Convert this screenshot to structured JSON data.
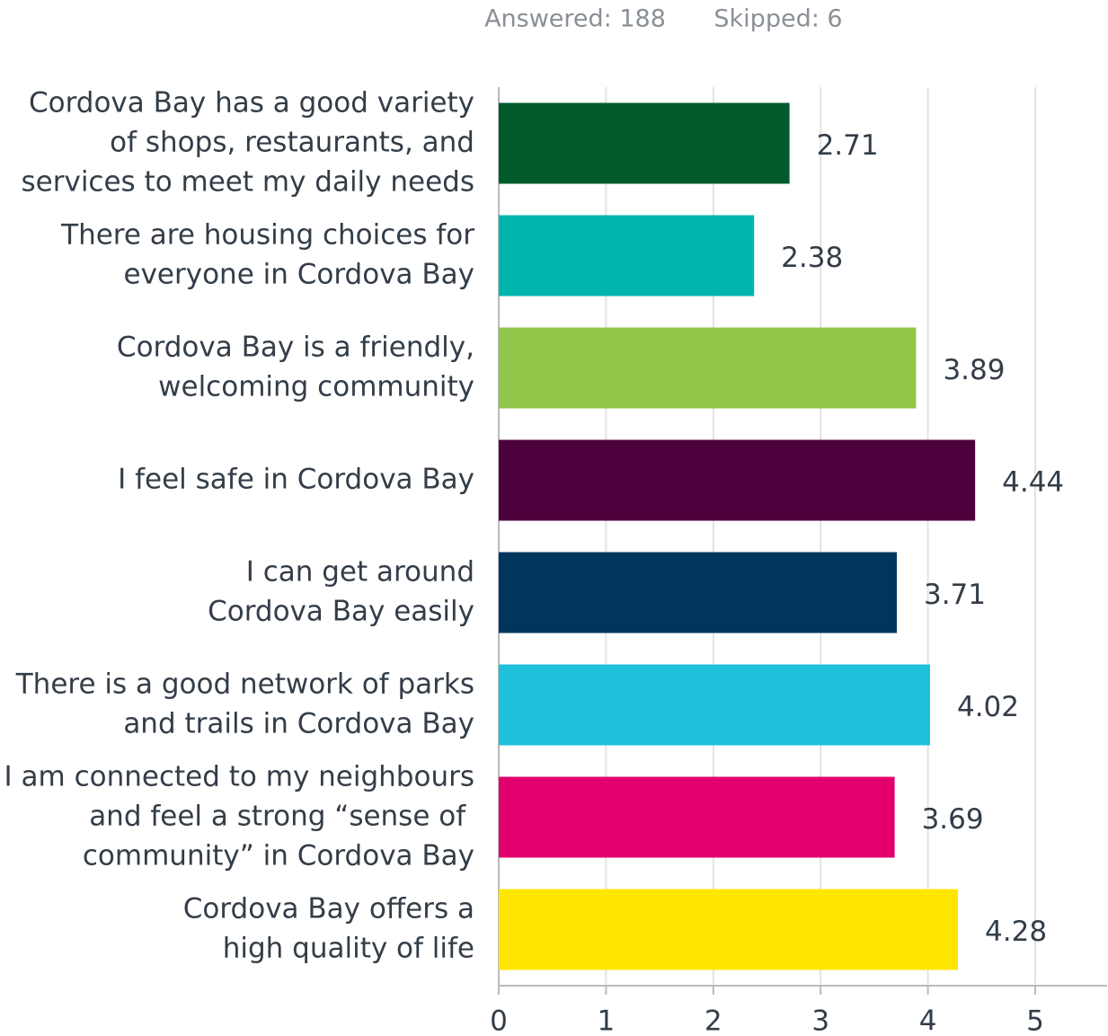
{
  "chart_data": {
    "type": "bar",
    "orientation": "horizontal",
    "annotations": [
      "Answered: 188",
      "Skipped: 6"
    ],
    "categories": [
      "Cordova Bay has a good variety\nof shops, restaurants, and\nservices to meet my daily needs",
      "There are housing choices for\neveryone in Cordova Bay",
      "Cordova Bay is a friendly,\nwelcoming community",
      "I feel safe in Cordova Bay",
      "I can get around\nCordova Bay easily",
      "There is a good network of parks\nand trails in Cordova Bay",
      "I am connected to my neighbours\nand feel a strong “sense of \ncommunity” in Cordova Bay",
      "Cordova Bay offers a\nhigh quality of life"
    ],
    "values": [
      2.71,
      2.38,
      3.89,
      4.44,
      3.71,
      4.02,
      3.69,
      4.28
    ],
    "colors": [
      "#005a2b",
      "#00b5ad",
      "#92c64a",
      "#4c003c",
      "#00365e",
      "#1fc0dc",
      "#e3006e",
      "#ffe600"
    ],
    "xlim": [
      0,
      5.67
    ],
    "xticks": [
      0,
      1,
      2,
      3,
      4,
      5
    ],
    "grid": true
  }
}
